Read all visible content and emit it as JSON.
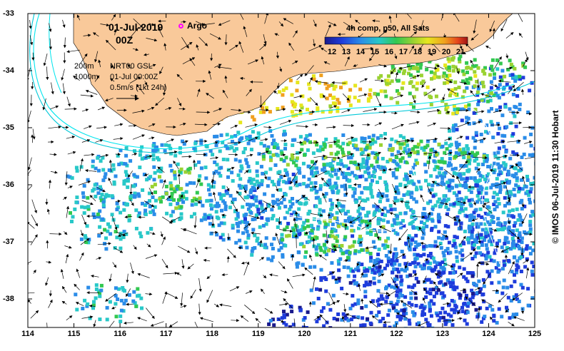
{
  "title": {
    "date": "01-Jul-2019",
    "time": "00Z"
  },
  "legend": {
    "argo_label": "Argo",
    "argo_color": "#ff00ff"
  },
  "annotations": {
    "isobath_200": "200m",
    "isobath_1000": "1000m",
    "current_source": "NRT00 GSL",
    "current_time": "01-Jul 00:00Z",
    "vector_scale": "0.5m/s (1kt 24h)"
  },
  "colorbar": {
    "title": "4h comp, p50, All Sats",
    "ticks": [
      "12",
      "13",
      "14",
      "15",
      "16",
      "17",
      "18",
      "19",
      "20",
      "21"
    ],
    "range_c": [
      11.5,
      21.5
    ]
  },
  "credit": "© IMOS 06-Jul-2019 11:30 Hobart",
  "axes": {
    "x_ticks": [
      "114",
      "115",
      "116",
      "117",
      "118",
      "119",
      "120",
      "121",
      "122",
      "123",
      "124",
      "125"
    ],
    "y_ticks": [
      "-33",
      "-34",
      "-35",
      "-36",
      "-37",
      "-38"
    ],
    "lon_range": [
      114,
      125
    ],
    "lat_range": [
      -38.5,
      -33
    ]
  },
  "colors": {
    "land": "#f9c99a",
    "isobath_200": "#00e5ee",
    "isobath_1000": "#00c8d8",
    "ssh_contour": "#ffffff",
    "vectors": "#000000"
  },
  "icons": [
    "argo-float-icon"
  ]
}
